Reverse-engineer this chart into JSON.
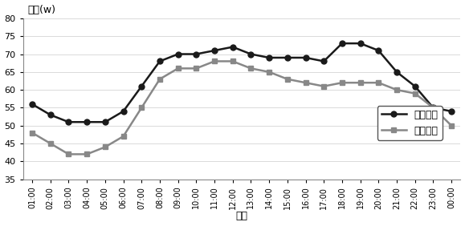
{
  "time_labels": [
    "01:00",
    "02:00",
    "03:00",
    "04:00",
    "05:00",
    "06:00",
    "07:00",
    "08:00",
    "09:00",
    "10:00",
    "11:00",
    "12:00",
    "13:00",
    "14:00",
    "15:00",
    "16:00",
    "17:00",
    "18:00",
    "19:00",
    "20:00",
    "21:00",
    "22:00",
    "23:00",
    "00:00"
  ],
  "summer": [
    56,
    53,
    51,
    51,
    51,
    54,
    61,
    68,
    70,
    70,
    71,
    72,
    70,
    69,
    69,
    69,
    68,
    73,
    73,
    71,
    65,
    61,
    55,
    54
  ],
  "winter": [
    48,
    45,
    42,
    42,
    44,
    47,
    55,
    63,
    66,
    66,
    68,
    68,
    66,
    65,
    63,
    62,
    61,
    62,
    62,
    62,
    60,
    59,
    55,
    50
  ],
  "summer_color": "#1a1a1a",
  "winter_color": "#888888",
  "ylabel": "负载(w)",
  "xlabel": "时间",
  "legend_summer": "夏季用电",
  "legend_winter": "冬季用电",
  "ylim": [
    35,
    80
  ],
  "yticks": [
    35,
    40,
    45,
    50,
    55,
    60,
    65,
    70,
    75,
    80
  ],
  "bg_color": "#ffffff"
}
